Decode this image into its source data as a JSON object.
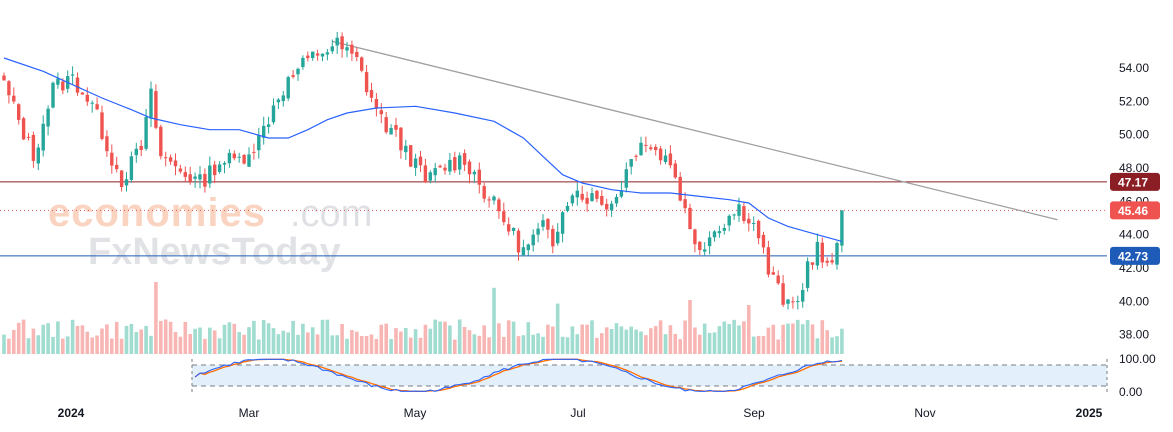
{
  "chart_data": {
    "type": "candlestick",
    "title": "",
    "xlabel": "",
    "ylabel": "",
    "ylim": [
      37,
      56
    ],
    "y_ticks": [
      "54.00",
      "52.00",
      "50.00",
      "48.00",
      "46.00",
      "44.00",
      "42.00",
      "40.00",
      "38.00"
    ],
    "x_ticks": [
      "2024",
      "Mar",
      "May",
      "Jul",
      "Sep",
      "Nov",
      "2025"
    ],
    "horizontal_levels": [
      {
        "name": "resistance",
        "value": 47.17,
        "label": "47.17",
        "color": "#8b1e24"
      },
      {
        "name": "support",
        "value": 42.73,
        "label": "42.73",
        "color": "#1e5bb8"
      }
    ],
    "last_price": {
      "value": 45.46,
      "label": "45.46",
      "color": "#ef5350"
    },
    "trendline": {
      "start_day": 67,
      "start_value": 55.6,
      "end_day": 215,
      "end_value": 44.9,
      "color": "#9e9e9e"
    },
    "moving_average": {
      "color": "#2962ff"
    },
    "candle_keypoints": [
      [
        0,
        53.0
      ],
      [
        6,
        48.7
      ],
      [
        10,
        52.8
      ],
      [
        14,
        53.4
      ],
      [
        18,
        51.8
      ],
      [
        22,
        48.6
      ],
      [
        24,
        47.3
      ],
      [
        28,
        49.2
      ],
      [
        30,
        52.3
      ],
      [
        32,
        48.7
      ],
      [
        36,
        47.9
      ],
      [
        40,
        47.1
      ],
      [
        44,
        48.4
      ],
      [
        48,
        48.5
      ],
      [
        52,
        49.7
      ],
      [
        56,
        52.4
      ],
      [
        60,
        53.9
      ],
      [
        64,
        54.9
      ],
      [
        68,
        55.4
      ],
      [
        72,
        54.4
      ],
      [
        74,
        52.9
      ],
      [
        77,
        50.9
      ],
      [
        82,
        49.1
      ],
      [
        86,
        47.2
      ],
      [
        90,
        48.1
      ],
      [
        94,
        48.6
      ],
      [
        98,
        46.6
      ],
      [
        102,
        44.9
      ],
      [
        106,
        43.0
      ],
      [
        110,
        44.5
      ],
      [
        112,
        43.1
      ],
      [
        114,
        45.8
      ],
      [
        116,
        46.7
      ],
      [
        120,
        46.2
      ],
      [
        124,
        45.8
      ],
      [
        126,
        47.1
      ],
      [
        130,
        49.9
      ],
      [
        132,
        49.2
      ],
      [
        136,
        48.4
      ],
      [
        138,
        46.5
      ],
      [
        140,
        44.2
      ],
      [
        142,
        43.3
      ],
      [
        146,
        44.6
      ],
      [
        150,
        45.6
      ],
      [
        152,
        45.1
      ],
      [
        154,
        44.0
      ],
      [
        156,
        41.8
      ],
      [
        160,
        39.6
      ],
      [
        162,
        39.9
      ],
      [
        164,
        42.2
      ],
      [
        166,
        43.2
      ],
      [
        168,
        41.9
      ],
      [
        170,
        43.0
      ],
      [
        171,
        45.5
      ]
    ],
    "moving_average_keypoints": [
      [
        0,
        54.6
      ],
      [
        8,
        53.8
      ],
      [
        14,
        53.0
      ],
      [
        20,
        52.2
      ],
      [
        26,
        51.5
      ],
      [
        30,
        51.0
      ],
      [
        36,
        50.6
      ],
      [
        42,
        50.3
      ],
      [
        48,
        50.3
      ],
      [
        54,
        49.8
      ],
      [
        58,
        49.8
      ],
      [
        62,
        50.3
      ],
      [
        66,
        50.9
      ],
      [
        70,
        51.3
      ],
      [
        76,
        51.6
      ],
      [
        84,
        51.7
      ],
      [
        92,
        51.3
      ],
      [
        100,
        50.8
      ],
      [
        106,
        49.8
      ],
      [
        110,
        48.7
      ],
      [
        114,
        47.6
      ],
      [
        118,
        47.1
      ],
      [
        124,
        46.7
      ],
      [
        130,
        46.5
      ],
      [
        136,
        46.5
      ],
      [
        142,
        46.3
      ],
      [
        148,
        46.1
      ],
      [
        152,
        45.9
      ],
      [
        156,
        45.0
      ],
      [
        160,
        44.5
      ],
      [
        166,
        44.0
      ],
      [
        171,
        43.6
      ]
    ],
    "volume": {
      "max": 100
    },
    "stochastic": {
      "y_ticks": [
        "100.00",
        "0.00"
      ],
      "band_upper": 80,
      "band_lower": 20,
      "k_color": "#2962ff",
      "d_color": "#ff6d00"
    }
  },
  "watermark": {
    "line1_brand": "economies",
    "line1_suffix": ".com",
    "line2": "FxNewsToday"
  }
}
